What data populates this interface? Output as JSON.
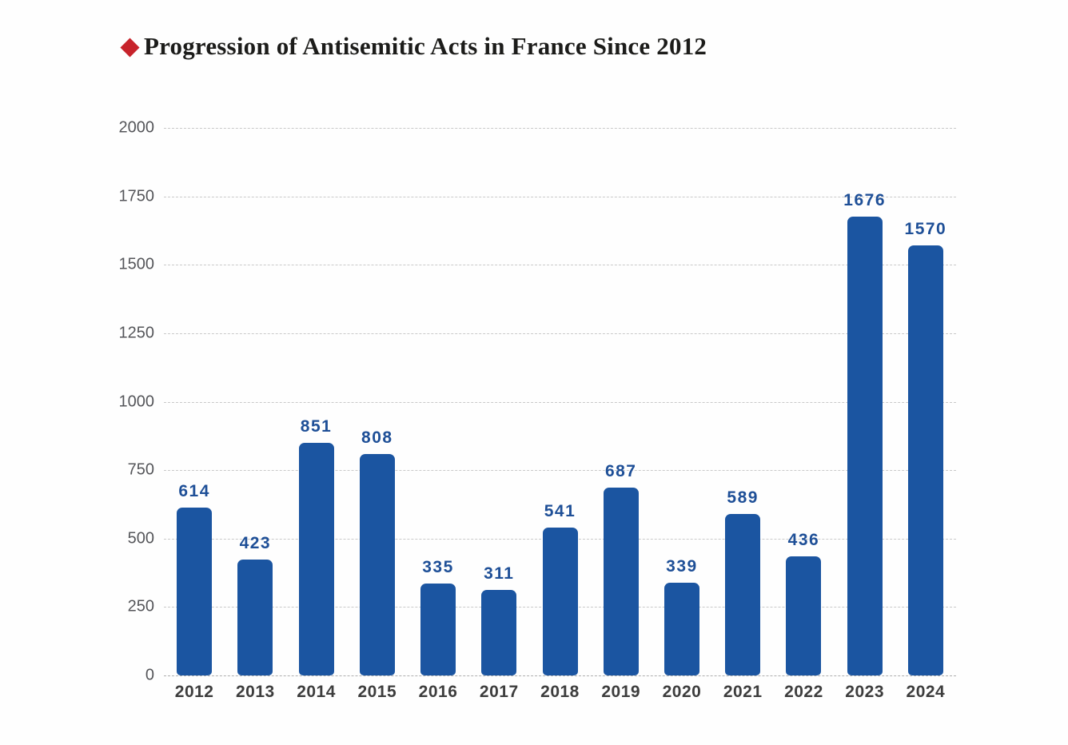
{
  "header": {
    "title": "Progression of Antisemitic Acts in France Since 2012",
    "title_color": "#1c1c1a",
    "bullet_icon": "diamond-icon",
    "bullet_color": "#c7232b"
  },
  "chart_data": {
    "type": "bar",
    "title": "Progression of Antisemitic Acts in France Since 2012",
    "categories": [
      "2012",
      "2013",
      "2014",
      "2015",
      "2016",
      "2017",
      "2018",
      "2019",
      "2020",
      "2021",
      "2022",
      "2023",
      "2024"
    ],
    "values": [
      614,
      423,
      851,
      808,
      335,
      311,
      541,
      687,
      339,
      589,
      436,
      1676,
      1570
    ],
    "xlabel": "",
    "ylabel": "",
    "ylim": [
      0,
      2000
    ],
    "yticks": [
      0,
      250,
      500,
      750,
      1000,
      1250,
      1500,
      1750,
      2000
    ],
    "grid": true,
    "gridline_style": "dashed",
    "legend_position": "none",
    "bar_color": "#1b55a1",
    "value_label_color": "#1e4f97",
    "ytick_color": "#55565a",
    "xtick_color": "#3d3d3d"
  }
}
